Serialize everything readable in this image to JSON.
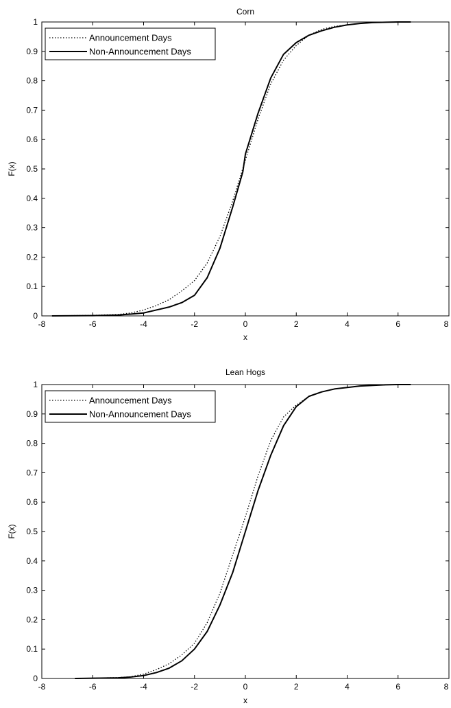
{
  "chart_data": [
    {
      "type": "line",
      "title": "Corn",
      "xlabel": "x",
      "ylabel": "F(x)",
      "xlim": [
        -8,
        8
      ],
      "ylim": [
        0,
        1
      ],
      "xticks": [
        "-8",
        "-6",
        "-4",
        "-2",
        "0",
        "2",
        "4",
        "6",
        "8"
      ],
      "yticks": [
        "0",
        "0.1",
        "0.2",
        "0.3",
        "0.4",
        "0.5",
        "0.6",
        "0.7",
        "0.8",
        "0.9",
        "1"
      ],
      "grid": false,
      "legend_position": "top-left",
      "series": [
        {
          "name": "Announcement Days",
          "style": "dotted",
          "color": "#000000",
          "x": [
            -7.6,
            -6,
            -5,
            -4.5,
            -4,
            -3.5,
            -3,
            -2.5,
            -2,
            -1.5,
            -1,
            -0.5,
            0,
            0.5,
            1,
            1.5,
            2,
            2.5,
            3,
            3.5,
            4,
            4.5,
            5,
            5.5,
            6.1
          ],
          "y": [
            0.0,
            0.002,
            0.005,
            0.01,
            0.02,
            0.035,
            0.055,
            0.085,
            0.12,
            0.18,
            0.27,
            0.39,
            0.53,
            0.67,
            0.79,
            0.87,
            0.92,
            0.955,
            0.975,
            0.985,
            0.99,
            0.995,
            0.998,
            0.999,
            1.0
          ]
        },
        {
          "name": "Non-Announcement Days",
          "style": "solid",
          "color": "#000000",
          "x": [
            -7.6,
            -6,
            -5,
            -4.5,
            -4,
            -3.5,
            -3,
            -2.5,
            -2,
            -1.5,
            -1,
            -0.5,
            -0.1,
            0,
            0.5,
            1,
            1.5,
            2,
            2.5,
            3,
            3.5,
            4,
            4.5,
            5,
            5.5,
            6,
            6.5
          ],
          "y": [
            0.0,
            0.001,
            0.003,
            0.006,
            0.01,
            0.02,
            0.03,
            0.045,
            0.07,
            0.13,
            0.23,
            0.37,
            0.49,
            0.55,
            0.69,
            0.81,
            0.89,
            0.93,
            0.955,
            0.97,
            0.982,
            0.99,
            0.995,
            0.998,
            0.999,
            1.0,
            1.0
          ]
        }
      ]
    },
    {
      "type": "line",
      "title": "Lean Hogs",
      "xlabel": "x",
      "ylabel": "F(x)",
      "xlim": [
        -8,
        8
      ],
      "ylim": [
        0,
        1
      ],
      "xticks": [
        "-8",
        "-6",
        "-4",
        "-2",
        "0",
        "2",
        "4",
        "6",
        "8"
      ],
      "yticks": [
        "0",
        "0.1",
        "0.2",
        "0.3",
        "0.4",
        "0.5",
        "0.6",
        "0.7",
        "0.8",
        "0.9",
        "1"
      ],
      "grid": false,
      "legend_position": "top-left",
      "series": [
        {
          "name": "Announcement Days",
          "style": "dotted",
          "color": "#000000",
          "x": [
            -6.5,
            -5,
            -4.5,
            -4,
            -3.5,
            -3,
            -2.5,
            -2,
            -1.5,
            -1,
            -0.5,
            0,
            0.5,
            1,
            1.5,
            2,
            2.5,
            3,
            3.5,
            4,
            4.5,
            5,
            5.5,
            6,
            6.5
          ],
          "y": [
            0.0,
            0.003,
            0.006,
            0.015,
            0.03,
            0.05,
            0.08,
            0.12,
            0.19,
            0.29,
            0.42,
            0.55,
            0.69,
            0.81,
            0.89,
            0.93,
            0.96,
            0.975,
            0.985,
            0.99,
            0.995,
            0.997,
            0.999,
            1.0,
            1.0
          ]
        },
        {
          "name": "Non-Announcement Days",
          "style": "solid",
          "color": "#000000",
          "x": [
            -6.7,
            -5,
            -4.5,
            -4,
            -3.5,
            -3,
            -2.5,
            -2,
            -1.5,
            -1,
            -0.5,
            0,
            0.5,
            1,
            1.5,
            2,
            2.5,
            3,
            3.5,
            4,
            4.5,
            5,
            5.5,
            6,
            6.5
          ],
          "y": [
            0.0,
            0.002,
            0.005,
            0.01,
            0.02,
            0.035,
            0.06,
            0.1,
            0.16,
            0.25,
            0.36,
            0.5,
            0.64,
            0.76,
            0.86,
            0.925,
            0.96,
            0.975,
            0.985,
            0.99,
            0.995,
            0.997,
            0.999,
            1.0,
            1.0
          ]
        }
      ]
    }
  ]
}
